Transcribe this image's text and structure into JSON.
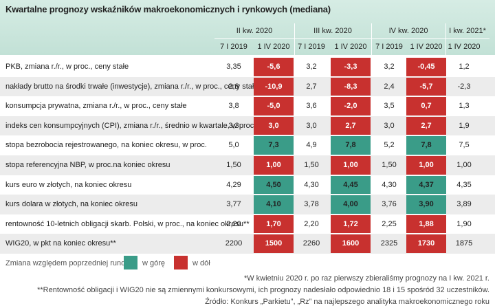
{
  "title": "Kwartalne prognozy wskaźników makroekonomicznych i rynkowych (mediana)",
  "table": {
    "groups": [
      "II kw. 2020",
      "III kw. 2020",
      "IV kw. 2020",
      "I kw. 2021*"
    ],
    "subheaders": [
      "7 I 2019",
      "1 IV 2020",
      "7 I 2019",
      "1 IV 2020",
      "7 I 2019",
      "1 IV 2020",
      "1 IV 2020"
    ],
    "rows": [
      {
        "label": "PKB, zmiana r./r., w proc., ceny stałe",
        "values": [
          "3,35",
          "-5,6",
          "3,2",
          "-3,3",
          "3,2",
          "-0,45",
          "1,2"
        ],
        "colors": [
          null,
          "#c8312f",
          null,
          "#c8312f",
          null,
          "#c8312f",
          null
        ]
      },
      {
        "label": "nakłady brutto na środki trwałe (inwestycje), zmiana r./r., w proc., ceny stałe",
        "values": [
          "2,8",
          "-10,9",
          "2,7",
          "-8,3",
          "2,4",
          "-5,7",
          "-2,3"
        ],
        "colors": [
          null,
          "#c8312f",
          null,
          "#c8312f",
          null,
          "#c8312f",
          null
        ]
      },
      {
        "label": "konsumpcja prywatna, zmiana r./r., w proc., ceny stałe",
        "values": [
          "3,8",
          "-5,0",
          "3,6",
          "-2,0",
          "3,5",
          "0,7",
          "1,3"
        ],
        "colors": [
          null,
          "#c8312f",
          null,
          "#c8312f",
          null,
          "#c8312f",
          null
        ]
      },
      {
        "label": "indeks cen konsumpcyjnych (CPI), zmiana r./r., średnio w kwartale, w proc.",
        "values": [
          "3,3",
          "3,0",
          "3,0",
          "2,7",
          "3,0",
          "2,7",
          "1,9"
        ],
        "colors": [
          null,
          "#c8312f",
          null,
          "#c8312f",
          null,
          "#c8312f",
          null
        ]
      },
      {
        "label": "stopa bezrobocia rejestrowanego, na koniec okresu, w proc.",
        "values": [
          "5,0",
          "7,3",
          "4,9",
          "7,8",
          "5,2",
          "7,8",
          "7,5"
        ],
        "colors": [
          null,
          "#3a9c88",
          null,
          "#3a9c88",
          null,
          "#3a9c88",
          null
        ]
      },
      {
        "label": "stopa referencyjna NBP, w proc.na koniec okresu",
        "values": [
          "1,50",
          "1,00",
          "1,50",
          "1,00",
          "1,50",
          "1,00",
          "1,00"
        ],
        "colors": [
          null,
          "#c8312f",
          null,
          "#c8312f",
          null,
          "#c8312f",
          null
        ]
      },
      {
        "label": "kurs euro w złotych, na koniec okresu",
        "values": [
          "4,29",
          "4,50",
          "4,30",
          "4,45",
          "4,30",
          "4,37",
          "4,35"
        ],
        "colors": [
          null,
          "#3a9c88",
          null,
          "#3a9c88",
          null,
          "#3a9c88",
          null
        ]
      },
      {
        "label": "kurs dolara w złotych, na koniec okresu",
        "values": [
          "3,77",
          "4,10",
          "3,78",
          "4,00",
          "3,76",
          "3,90",
          "3,89"
        ],
        "colors": [
          null,
          "#3a9c88",
          null,
          "#3a9c88",
          null,
          "#3a9c88",
          null
        ]
      },
      {
        "label": "rentowność 10-letnich obligacji skarb. Polski, w proc., na koniec okresu**",
        "values": [
          "2,20",
          "1,70",
          "2,20",
          "1,72",
          "2,25",
          "1,88",
          "1,90"
        ],
        "colors": [
          null,
          "#c8312f",
          null,
          "#c8312f",
          null,
          "#c8312f",
          null
        ]
      },
      {
        "label": "WIG20, w pkt na koniec okresu**",
        "values": [
          "2200",
          "1500",
          "2260",
          "1600",
          "2325",
          "1730",
          "1875"
        ],
        "colors": [
          null,
          "#c8312f",
          null,
          "#c8312f",
          null,
          "#c8312f",
          null
        ]
      }
    ]
  },
  "legend": {
    "title": "Zmiana względem poprzedniej rundy:",
    "items": [
      {
        "label": "w górę",
        "color": "#3a9c88"
      },
      {
        "label": "w dół",
        "color": "#c8312f"
      }
    ]
  },
  "footnotes": [
    "*W kwietniu 2020 r. po raz pierwszy zbieraliśmy prognozy na I kw. 2021 r.",
    "**Rentowność obligacji i WIG20 nie są zmiennymi konkursowymi, ich prognozy nadesłało odpowiednio 18 i 15 spośród 32 uczestników.",
    "Źródło: Konkurs „Parkietu”, „Rz” na najlepszego analityka makroekonomicznego roku"
  ]
}
